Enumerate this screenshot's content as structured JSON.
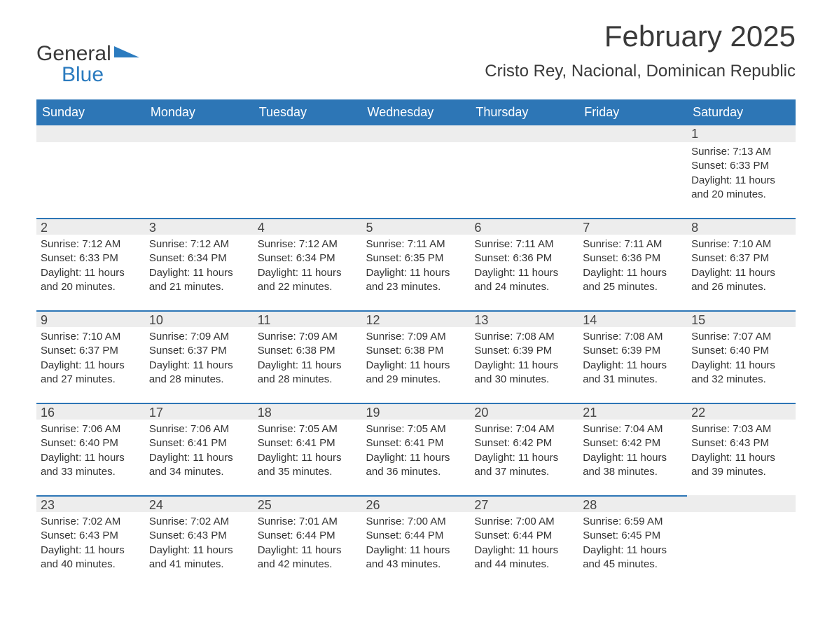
{
  "logo": {
    "word1": "General",
    "word2": "Blue"
  },
  "title": "February 2025",
  "location": "Cristo Rey, Nacional, Dominican Republic",
  "colors": {
    "header_bg": "#2d76b6",
    "header_text": "#ffffff",
    "daynum_bg": "#ededed",
    "row_border": "#2d76b6",
    "body_text": "#333333",
    "logo_blue": "#2b7bbf",
    "logo_gray": "#3a3a3a",
    "page_bg": "#ffffff"
  },
  "fonts": {
    "title_size_pt": 32,
    "location_size_pt": 18,
    "header_size_pt": 14,
    "daynum_size_pt": 14,
    "body_size_pt": 11
  },
  "weekdays": [
    "Sunday",
    "Monday",
    "Tuesday",
    "Wednesday",
    "Thursday",
    "Friday",
    "Saturday"
  ],
  "weeks": [
    [
      {
        "empty": true
      },
      {
        "empty": true
      },
      {
        "empty": true
      },
      {
        "empty": true
      },
      {
        "empty": true
      },
      {
        "empty": true
      },
      {
        "day": "1",
        "sunrise": "Sunrise: 7:13 AM",
        "sunset": "Sunset: 6:33 PM",
        "daylight": "Daylight: 11 hours and 20 minutes."
      }
    ],
    [
      {
        "day": "2",
        "sunrise": "Sunrise: 7:12 AM",
        "sunset": "Sunset: 6:33 PM",
        "daylight": "Daylight: 11 hours and 20 minutes."
      },
      {
        "day": "3",
        "sunrise": "Sunrise: 7:12 AM",
        "sunset": "Sunset: 6:34 PM",
        "daylight": "Daylight: 11 hours and 21 minutes."
      },
      {
        "day": "4",
        "sunrise": "Sunrise: 7:12 AM",
        "sunset": "Sunset: 6:34 PM",
        "daylight": "Daylight: 11 hours and 22 minutes."
      },
      {
        "day": "5",
        "sunrise": "Sunrise: 7:11 AM",
        "sunset": "Sunset: 6:35 PM",
        "daylight": "Daylight: 11 hours and 23 minutes."
      },
      {
        "day": "6",
        "sunrise": "Sunrise: 7:11 AM",
        "sunset": "Sunset: 6:36 PM",
        "daylight": "Daylight: 11 hours and 24 minutes."
      },
      {
        "day": "7",
        "sunrise": "Sunrise: 7:11 AM",
        "sunset": "Sunset: 6:36 PM",
        "daylight": "Daylight: 11 hours and 25 minutes."
      },
      {
        "day": "8",
        "sunrise": "Sunrise: 7:10 AM",
        "sunset": "Sunset: 6:37 PM",
        "daylight": "Daylight: 11 hours and 26 minutes."
      }
    ],
    [
      {
        "day": "9",
        "sunrise": "Sunrise: 7:10 AM",
        "sunset": "Sunset: 6:37 PM",
        "daylight": "Daylight: 11 hours and 27 minutes."
      },
      {
        "day": "10",
        "sunrise": "Sunrise: 7:09 AM",
        "sunset": "Sunset: 6:37 PM",
        "daylight": "Daylight: 11 hours and 28 minutes."
      },
      {
        "day": "11",
        "sunrise": "Sunrise: 7:09 AM",
        "sunset": "Sunset: 6:38 PM",
        "daylight": "Daylight: 11 hours and 28 minutes."
      },
      {
        "day": "12",
        "sunrise": "Sunrise: 7:09 AM",
        "sunset": "Sunset: 6:38 PM",
        "daylight": "Daylight: 11 hours and 29 minutes."
      },
      {
        "day": "13",
        "sunrise": "Sunrise: 7:08 AM",
        "sunset": "Sunset: 6:39 PM",
        "daylight": "Daylight: 11 hours and 30 minutes."
      },
      {
        "day": "14",
        "sunrise": "Sunrise: 7:08 AM",
        "sunset": "Sunset: 6:39 PM",
        "daylight": "Daylight: 11 hours and 31 minutes."
      },
      {
        "day": "15",
        "sunrise": "Sunrise: 7:07 AM",
        "sunset": "Sunset: 6:40 PM",
        "daylight": "Daylight: 11 hours and 32 minutes."
      }
    ],
    [
      {
        "day": "16",
        "sunrise": "Sunrise: 7:06 AM",
        "sunset": "Sunset: 6:40 PM",
        "daylight": "Daylight: 11 hours and 33 minutes."
      },
      {
        "day": "17",
        "sunrise": "Sunrise: 7:06 AM",
        "sunset": "Sunset: 6:41 PM",
        "daylight": "Daylight: 11 hours and 34 minutes."
      },
      {
        "day": "18",
        "sunrise": "Sunrise: 7:05 AM",
        "sunset": "Sunset: 6:41 PM",
        "daylight": "Daylight: 11 hours and 35 minutes."
      },
      {
        "day": "19",
        "sunrise": "Sunrise: 7:05 AM",
        "sunset": "Sunset: 6:41 PM",
        "daylight": "Daylight: 11 hours and 36 minutes."
      },
      {
        "day": "20",
        "sunrise": "Sunrise: 7:04 AM",
        "sunset": "Sunset: 6:42 PM",
        "daylight": "Daylight: 11 hours and 37 minutes."
      },
      {
        "day": "21",
        "sunrise": "Sunrise: 7:04 AM",
        "sunset": "Sunset: 6:42 PM",
        "daylight": "Daylight: 11 hours and 38 minutes."
      },
      {
        "day": "22",
        "sunrise": "Sunrise: 7:03 AM",
        "sunset": "Sunset: 6:43 PM",
        "daylight": "Daylight: 11 hours and 39 minutes."
      }
    ],
    [
      {
        "day": "23",
        "sunrise": "Sunrise: 7:02 AM",
        "sunset": "Sunset: 6:43 PM",
        "daylight": "Daylight: 11 hours and 40 minutes."
      },
      {
        "day": "24",
        "sunrise": "Sunrise: 7:02 AM",
        "sunset": "Sunset: 6:43 PM",
        "daylight": "Daylight: 11 hours and 41 minutes."
      },
      {
        "day": "25",
        "sunrise": "Sunrise: 7:01 AM",
        "sunset": "Sunset: 6:44 PM",
        "daylight": "Daylight: 11 hours and 42 minutes."
      },
      {
        "day": "26",
        "sunrise": "Sunrise: 7:00 AM",
        "sunset": "Sunset: 6:44 PM",
        "daylight": "Daylight: 11 hours and 43 minutes."
      },
      {
        "day": "27",
        "sunrise": "Sunrise: 7:00 AM",
        "sunset": "Sunset: 6:44 PM",
        "daylight": "Daylight: 11 hours and 44 minutes."
      },
      {
        "day": "28",
        "sunrise": "Sunrise: 6:59 AM",
        "sunset": "Sunset: 6:45 PM",
        "daylight": "Daylight: 11 hours and 45 minutes."
      },
      {
        "empty": true
      }
    ]
  ]
}
